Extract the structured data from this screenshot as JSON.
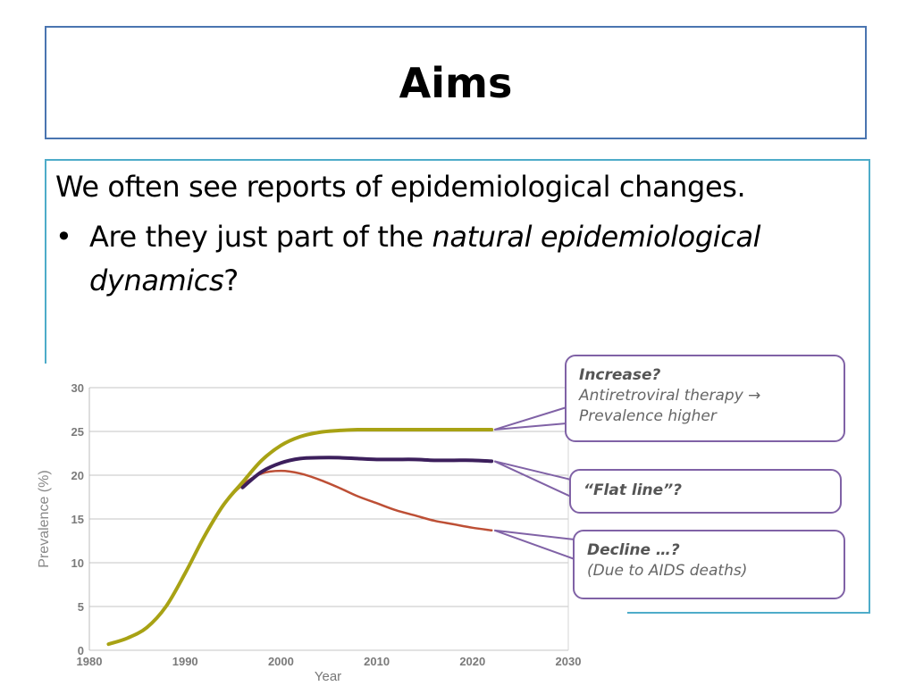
{
  "slide": {
    "title": "Aims",
    "intro": "We often see reports of epidemiological changes.",
    "bullet": {
      "marker": "•",
      "part1": "Are they just part of the ",
      "emphasis1": "natural epidemiological",
      "emphasis2": "dynamics",
      "part2": "?"
    }
  },
  "callouts": {
    "increase": {
      "head": "Increase?",
      "line1": "Antiretroviral therapy →",
      "line2": "Prevalence higher"
    },
    "flat": {
      "head": "“Flat line”?"
    },
    "decline": {
      "head": "Decline …?",
      "line1": "(Due to AIDS deaths)"
    }
  },
  "colors": {
    "title_border": "#4a75b0",
    "content_border": "#4eacc9",
    "callout_border": "#8062a6",
    "increase_series": "#a8a214",
    "flat_series": "#3c1f5c",
    "decline_series": "#bd4f35"
  },
  "chart_data": {
    "type": "line",
    "title": "",
    "xlabel": "Year",
    "ylabel": "Prevalence (%)",
    "xlim": [
      1980,
      2030
    ],
    "ylim": [
      0,
      30
    ],
    "xticks": [
      1980,
      1990,
      2000,
      2010,
      2020,
      2030
    ],
    "yticks": [
      0,
      5,
      10,
      15,
      20,
      25,
      30
    ],
    "grid": "horizontal",
    "series": [
      {
        "key": "decline",
        "x": [
          1982,
          1984,
          1986,
          1988,
          1990,
          1992,
          1994,
          1996,
          1998,
          2000,
          2002,
          2004,
          2006,
          2008,
          2010,
          2012,
          2014,
          2016,
          2018,
          2020,
          2022
        ],
        "y": [
          0.7,
          1.4,
          2.6,
          5.0,
          8.8,
          13.0,
          16.6,
          18.9,
          20.2,
          20.5,
          20.2,
          19.5,
          18.6,
          17.6,
          16.8,
          16.0,
          15.4,
          14.8,
          14.4,
          14.0,
          13.7
        ]
      },
      {
        "key": "flat",
        "x": [
          1996,
          1998,
          2000,
          2002,
          2004,
          2006,
          2008,
          2010,
          2012,
          2014,
          2016,
          2018,
          2020,
          2022
        ],
        "y": [
          18.6,
          20.4,
          21.4,
          21.9,
          22.0,
          22.0,
          21.9,
          21.8,
          21.8,
          21.8,
          21.7,
          21.7,
          21.7,
          21.6
        ]
      },
      {
        "key": "increase",
        "x": [
          1982,
          1984,
          1986,
          1988,
          1990,
          1992,
          1994,
          1996,
          1998,
          2000,
          2002,
          2004,
          2006,
          2008,
          2010,
          2012,
          2014,
          2016,
          2018,
          2020,
          2022
        ],
        "y": [
          0.7,
          1.4,
          2.6,
          5.0,
          8.8,
          13.0,
          16.6,
          19.2,
          21.7,
          23.4,
          24.4,
          24.9,
          25.1,
          25.2,
          25.2,
          25.2,
          25.2,
          25.2,
          25.2,
          25.2,
          25.2
        ]
      }
    ]
  }
}
